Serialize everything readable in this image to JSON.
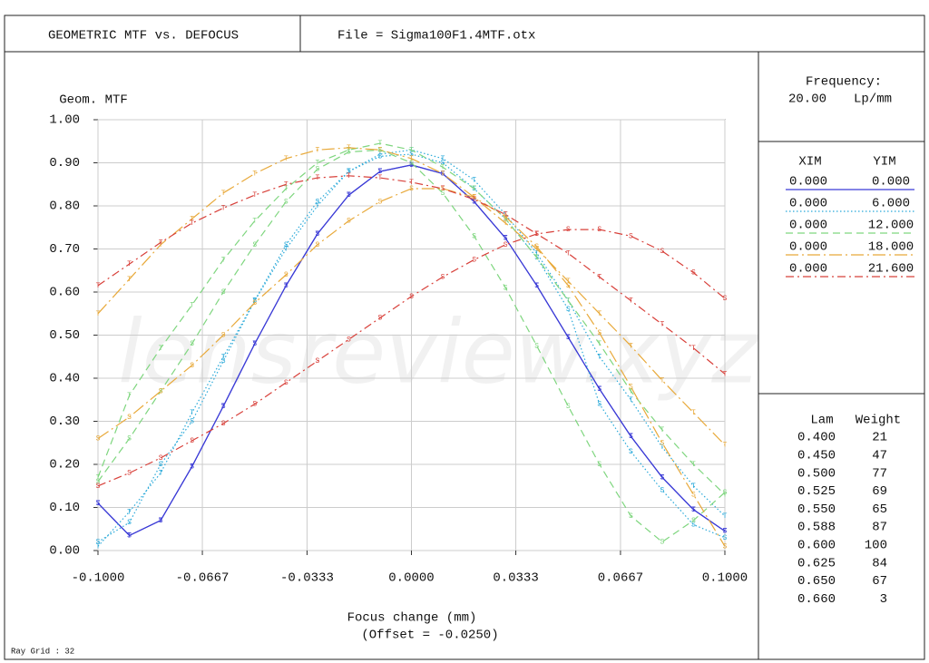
{
  "header": {
    "title": "GEOMETRIC MTF vs. DEFOCUS",
    "file": "File = Sigma100F1.4MTF.otx"
  },
  "frequency": {
    "label": "Frequency:",
    "value": "20.00",
    "unit": "Lp/mm"
  },
  "field_header": [
    "XIM",
    "YIM"
  ],
  "wavelength_header": [
    "Lam",
    "Weight"
  ],
  "wavelengths": [
    [
      "0.400",
      21
    ],
    [
      "0.450",
      47
    ],
    [
      "0.500",
      77
    ],
    [
      "0.525",
      69
    ],
    [
      "0.550",
      65
    ],
    [
      "0.588",
      87
    ],
    [
      "0.600",
      100
    ],
    [
      "0.625",
      84
    ],
    [
      "0.650",
      67
    ],
    [
      "0.660",
      3
    ]
  ],
  "ray_grid": "Ray Grid : 32",
  "watermark": "lensreview.xyz",
  "chart_data": {
    "type": "line",
    "y_label": "Geom. MTF",
    "x_label": "Focus change (mm)",
    "x_sublabel": "(Offset = -0.0250)",
    "xlim": [
      -0.1,
      0.1
    ],
    "ylim": [
      0,
      1
    ],
    "grid": true,
    "xticks": [
      {
        "value": -0.1,
        "label": "-0.1000"
      },
      {
        "value": -0.0667,
        "label": "-0.0667"
      },
      {
        "value": -0.0333,
        "label": "-0.0333"
      },
      {
        "value": 0,
        "label": "0.0000"
      },
      {
        "value": 0.0333,
        "label": "0.0333"
      },
      {
        "value": 0.0667,
        "label": "0.0667"
      },
      {
        "value": 0.1,
        "label": "0.1000"
      }
    ],
    "yticks": [
      {
        "value": 0,
        "label": "0.00"
      },
      {
        "value": 0.1,
        "label": "0.10"
      },
      {
        "value": 0.2,
        "label": "0.20"
      },
      {
        "value": 0.3,
        "label": "0.30"
      },
      {
        "value": 0.4,
        "label": "0.40"
      },
      {
        "value": 0.5,
        "label": "0.50"
      },
      {
        "value": 0.6,
        "label": "0.60"
      },
      {
        "value": 0.7,
        "label": "0.70"
      },
      {
        "value": 0.8,
        "label": "0.80"
      },
      {
        "value": 0.9,
        "label": "0.90"
      },
      {
        "value": 1,
        "label": "1.00"
      }
    ],
    "x": [
      -0.1,
      -0.09,
      -0.08,
      -0.07,
      -0.06,
      -0.05,
      -0.04,
      -0.03,
      -0.02,
      -0.01,
      0,
      0.01,
      0.02,
      0.03,
      0.04,
      0.05,
      0.06,
      0.07,
      0.08,
      0.09,
      0.1
    ],
    "fields": [
      {
        "xim": "0.000",
        "yim": "0.000",
        "color": "#3b3bd6",
        "style": "solid",
        "curves": [
          {
            "marker": "T",
            "values": [
              0.11,
              0.035,
              0.07,
              0.195,
              0.335,
              0.48,
              0.615,
              0.735,
              0.825,
              0.88,
              0.895,
              0.875,
              0.81,
              0.725,
              0.615,
              0.495,
              0.375,
              0.265,
              0.17,
              0.095,
              0.045
            ]
          },
          {
            "marker": "S",
            "values": [
              0.11,
              0.035,
              0.07,
              0.195,
              0.335,
              0.48,
              0.615,
              0.735,
              0.825,
              0.88,
              0.895,
              0.875,
              0.81,
              0.725,
              0.615,
              0.495,
              0.375,
              0.265,
              0.17,
              0.095,
              0.045
            ]
          }
        ]
      },
      {
        "xim": "0.000",
        "yim": "6.000",
        "color": "#29a9d9",
        "style": "dotted",
        "curves": [
          {
            "marker": "T",
            "values": [
              0.01,
              0.09,
              0.18,
              0.32,
              0.45,
              0.58,
              0.7,
              0.8,
              0.88,
              0.92,
              0.93,
              0.91,
              0.86,
              0.78,
              0.69,
              0.58,
              0.45,
              0.35,
              0.24,
              0.15,
              0.08
            ]
          },
          {
            "marker": "S",
            "values": [
              0.02,
              0.065,
              0.2,
              0.3,
              0.44,
              0.58,
              0.71,
              0.81,
              0.88,
              0.915,
              0.92,
              0.9,
              0.84,
              0.77,
              0.68,
              0.56,
              0.34,
              0.23,
              0.14,
              0.06,
              0.03
            ]
          }
        ]
      },
      {
        "xim": "0.000",
        "yim": "12.000",
        "color": "#7fd67f",
        "style": "dashed",
        "curves": [
          {
            "marker": "T",
            "values": [
              0.17,
              0.36,
              0.47,
              0.57,
              0.675,
              0.765,
              0.84,
              0.9,
              0.93,
              0.945,
              0.93,
              0.89,
              0.84,
              0.77,
              0.68,
              0.58,
              0.48,
              0.37,
              0.28,
              0.2,
              0.13
            ]
          },
          {
            "marker": "S",
            "values": [
              0.16,
              0.26,
              0.37,
              0.48,
              0.6,
              0.71,
              0.81,
              0.885,
              0.925,
              0.93,
              0.9,
              0.83,
              0.73,
              0.61,
              0.475,
              0.335,
              0.2,
              0.08,
              0.02,
              0.07,
              0.135
            ]
          }
        ]
      },
      {
        "xim": "0.000",
        "yim": "18.000",
        "color": "#e8a93a",
        "style": "long-dash-dot",
        "curves": [
          {
            "marker": "T",
            "values": [
              0.55,
              0.63,
              0.71,
              0.77,
              0.83,
              0.875,
              0.91,
              0.93,
              0.935,
              0.93,
              0.91,
              0.875,
              0.82,
              0.76,
              0.7,
              0.625,
              0.55,
              0.475,
              0.395,
              0.32,
              0.245
            ]
          },
          {
            "marker": "S",
            "values": [
              0.26,
              0.31,
              0.37,
              0.43,
              0.5,
              0.575,
              0.64,
              0.71,
              0.765,
              0.81,
              0.84,
              0.84,
              0.82,
              0.775,
              0.705,
              0.615,
              0.505,
              0.38,
              0.25,
              0.13,
              0.01
            ]
          }
        ]
      },
      {
        "xim": "0.000",
        "yim": "21.600",
        "color": "#d8403a",
        "style": "dash-dot",
        "curves": [
          {
            "marker": "T",
            "values": [
              0.615,
              0.665,
              0.715,
              0.76,
              0.795,
              0.825,
              0.85,
              0.865,
              0.87,
              0.865,
              0.855,
              0.84,
              0.815,
              0.78,
              0.735,
              0.69,
              0.635,
              0.58,
              0.525,
              0.47,
              0.41
            ]
          },
          {
            "marker": "S",
            "values": [
              0.15,
              0.18,
              0.215,
              0.255,
              0.295,
              0.34,
              0.39,
              0.44,
              0.49,
              0.54,
              0.59,
              0.635,
              0.675,
              0.71,
              0.735,
              0.745,
              0.745,
              0.73,
              0.695,
              0.645,
              0.585
            ]
          }
        ]
      }
    ]
  }
}
